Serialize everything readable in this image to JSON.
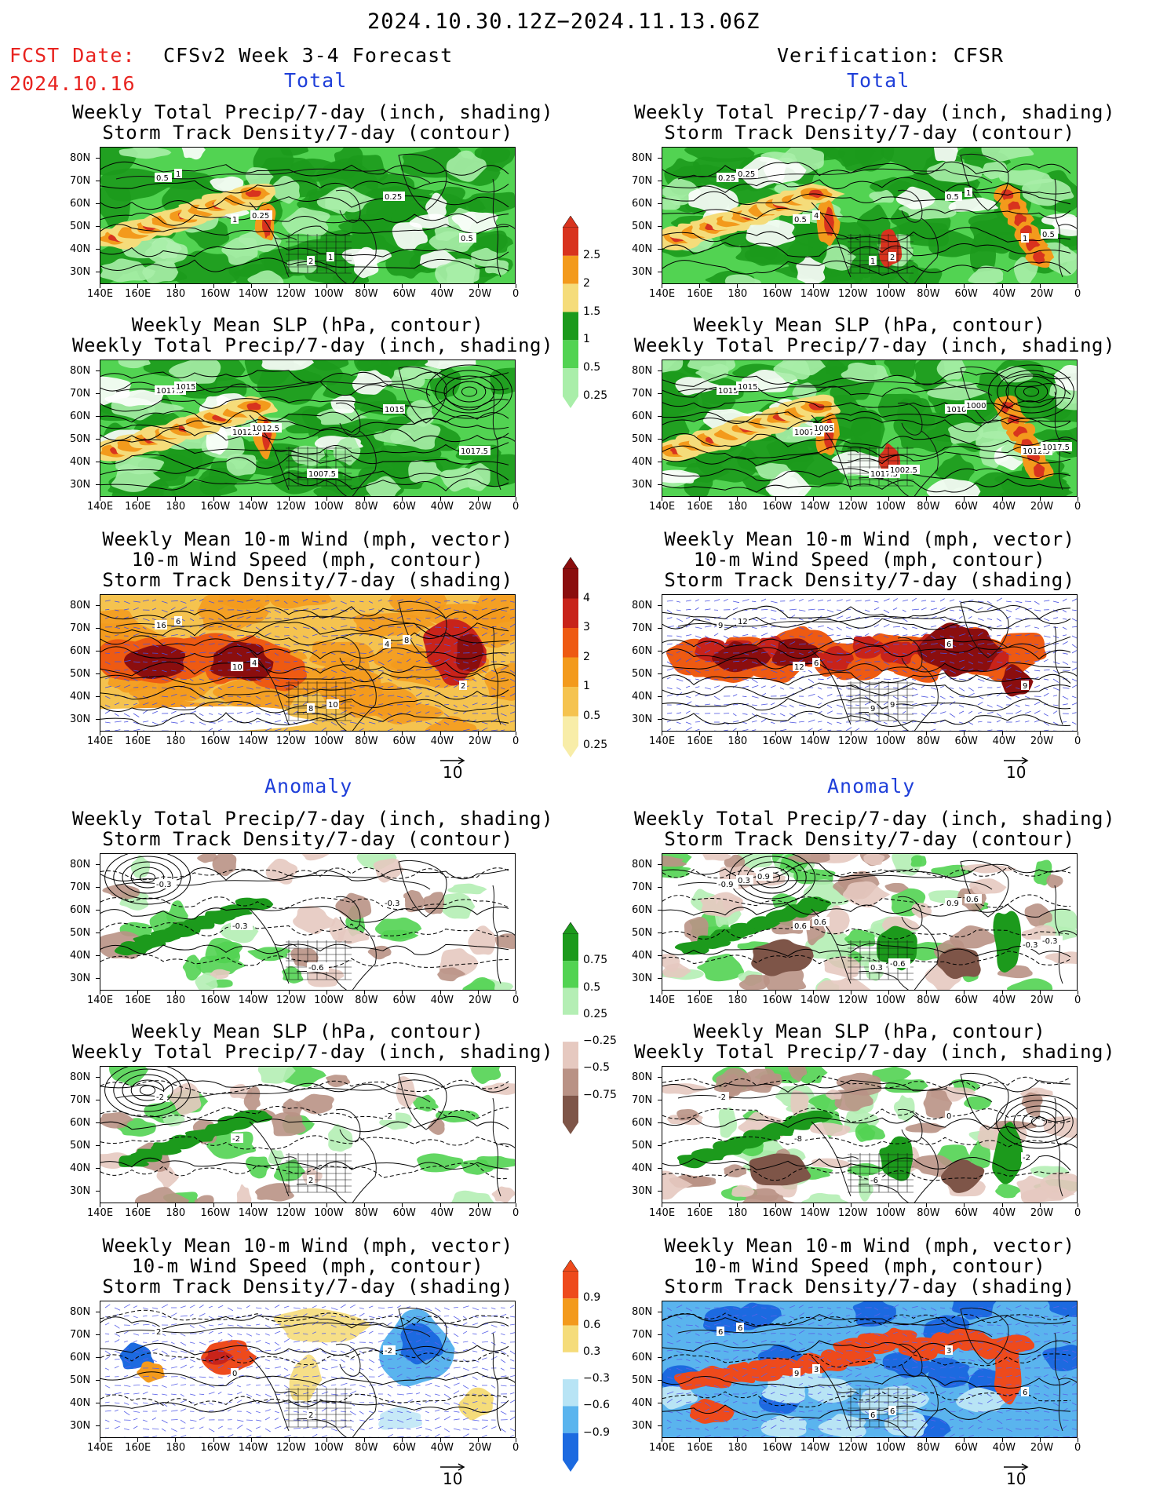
{
  "header": {
    "period": "2024.10.30.12Z−2024.11.13.06Z",
    "fcst_label": "FCST Date:",
    "fcst_date": "2024.10.16",
    "model": "CFSv2 Week 3-4 Forecast",
    "verification": "Verification: CFSR"
  },
  "sections": {
    "total": "Total",
    "anomaly": "Anomaly"
  },
  "titles": {
    "precip_storm": [
      "Weekly Total Precip/7-day (inch, shading)",
      "Storm Track Density/7-day (contour)"
    ],
    "slp_precip": [
      "Weekly Mean SLP (hPa, contour)",
      "Weekly Total Precip/7-day (inch, shading)"
    ],
    "wind_storm": [
      "Weekly Mean 10-m Wind (mph, vector)",
      "10-m Wind Speed (mph, contour)",
      "Storm Track Density/7-day (shading)"
    ]
  },
  "axes": {
    "lat": [
      "80N",
      "70N",
      "60N",
      "50N",
      "40N",
      "30N"
    ],
    "lon": [
      "140E",
      "160E",
      "180",
      "160W",
      "140W",
      "120W",
      "100W",
      "80W",
      "60W",
      "40W",
      "20W",
      "0"
    ]
  },
  "colorbars": {
    "precip_total": {
      "labels": [
        "2.5",
        "2",
        "1.5",
        "1",
        "0.5",
        "0.25"
      ],
      "colors": [
        "#d8331e",
        "#f39a1c",
        "#f5dc7a",
        "#1c9a1c",
        "#52d352",
        "#a9eea9"
      ]
    },
    "storm_total": {
      "labels": [
        "4",
        "3",
        "2",
        "1",
        "0.5",
        "0.25"
      ],
      "colors": [
        "#8b0e0e",
        "#c8231a",
        "#ee5a12",
        "#f39a1c",
        "#f5c34f",
        "#f8eda8"
      ]
    },
    "precip_anom": {
      "labels": [
        "0.75",
        "0.5",
        "0.25",
        "−0.25",
        "−0.5",
        "−0.75"
      ],
      "colors": [
        "#1c9a1c",
        "#52d352",
        "#b4eeb4",
        "#ffffff",
        "#e6c9c0",
        "#b99285",
        "#7e5548"
      ]
    },
    "storm_anom": {
      "labels": [
        "0.9",
        "0.6",
        "0.3",
        "−0.3",
        "−0.6",
        "−0.9"
      ],
      "colors": [
        "#ee4a1c",
        "#f39a1c",
        "#f5dc7a",
        "#ffffff",
        "#b8e4f5",
        "#5ab4ee",
        "#1c6ae0"
      ]
    }
  },
  "vector_ref": "10",
  "panel_labels": {
    "p1f": [
      "0.5",
      "1",
      "2",
      "0.25",
      "0.5",
      "1",
      "0.25",
      "1"
    ],
    "p1v": [
      "0.25",
      "0.5",
      "1",
      "0.5",
      "1",
      "0.25",
      "4",
      "2",
      "1",
      "0.5"
    ],
    "p2f": [
      "1017.5",
      "1012.5",
      "1007.5",
      "1015",
      "1017.5",
      "1015",
      "1012.5"
    ],
    "p2v": [
      "1015",
      "1007.5",
      "1017.5",
      "1010",
      "1012.5",
      "1015",
      "1005",
      "1002.5",
      "1000",
      "1017.5"
    ],
    "p3f": [
      "16",
      "10",
      "8",
      "4",
      "2",
      "6",
      "4",
      "10",
      "8"
    ],
    "p3v": [
      "9",
      "12",
      "9",
      "6",
      "9",
      "12",
      "6",
      "9"
    ],
    "p4f": [
      "-0.3",
      "-0.3",
      "-0.6",
      "-0.3"
    ],
    "p4v": [
      "-0.9",
      "0.6",
      "0.3",
      "0.9",
      "-0.3",
      "0.3",
      "0.6",
      "-0.6",
      "0.6",
      "-0.3",
      "0.9"
    ],
    "p5f": [
      "-2",
      "-2",
      "2",
      "-2"
    ],
    "p5v": [
      "-2",
      "-8",
      "-6",
      "0",
      "-2"
    ],
    "p6f": [
      "2",
      "0",
      "2",
      "-2"
    ],
    "p6v": [
      "6",
      "9",
      "6",
      "3",
      "6",
      "6",
      "3",
      "6"
    ]
  }
}
